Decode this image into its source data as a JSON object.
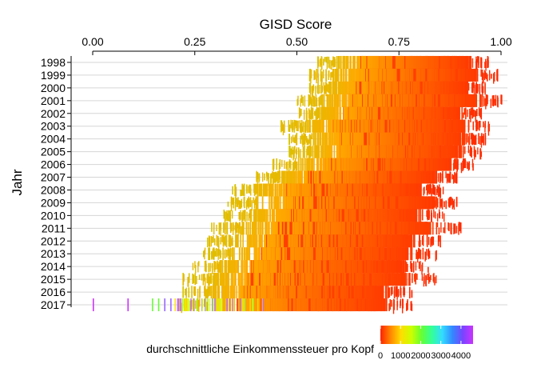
{
  "chart_data": {
    "type": "heatmap",
    "title": "GISD Score",
    "xlabel": "GISD Score",
    "ylabel": "Jahr",
    "x_axis_position": "top",
    "xlim": [
      0,
      1
    ],
    "x_ticks": [
      "0.00",
      "0.25",
      "0.50",
      "0.75",
      "1.00"
    ],
    "x_tick_values": [
      0,
      0.25,
      0.5,
      0.75,
      1.0
    ],
    "categories": [
      "1998",
      "1999",
      "2000",
      "2001",
      "2002",
      "2003",
      "2004",
      "2005",
      "2006",
      "2007",
      "2008",
      "2009",
      "2010",
      "2011",
      "2012",
      "2013",
      "2014",
      "2015",
      "2016",
      "2017"
    ],
    "rows": [
      {
        "year": "1998",
        "gisd_min": 0.55,
        "gisd_max": 0.97
      },
      {
        "year": "1999",
        "gisd_min": 0.53,
        "gisd_max": 0.99
      },
      {
        "year": "2000",
        "gisd_min": 0.53,
        "gisd_max": 0.96
      },
      {
        "year": "2001",
        "gisd_min": 0.5,
        "gisd_max": 1.0
      },
      {
        "year": "2002",
        "gisd_min": 0.5,
        "gisd_max": 0.95
      },
      {
        "year": "2003",
        "gisd_min": 0.46,
        "gisd_max": 0.97
      },
      {
        "year": "2004",
        "gisd_min": 0.48,
        "gisd_max": 0.96
      },
      {
        "year": "2005",
        "gisd_min": 0.48,
        "gisd_max": 0.95
      },
      {
        "year": "2006",
        "gisd_min": 0.44,
        "gisd_max": 0.93
      },
      {
        "year": "2007",
        "gisd_min": 0.4,
        "gisd_max": 0.89
      },
      {
        "year": "2008",
        "gisd_min": 0.34,
        "gisd_max": 0.86
      },
      {
        "year": "2009",
        "gisd_min": 0.33,
        "gisd_max": 0.89
      },
      {
        "year": "2010",
        "gisd_min": 0.32,
        "gisd_max": 0.86
      },
      {
        "year": "2011",
        "gisd_min": 0.29,
        "gisd_max": 0.9
      },
      {
        "year": "2012",
        "gisd_min": 0.28,
        "gisd_max": 0.85
      },
      {
        "year": "2013",
        "gisd_min": 0.27,
        "gisd_max": 0.84
      },
      {
        "year": "2014",
        "gisd_min": 0.24,
        "gisd_max": 0.82
      },
      {
        "year": "2015",
        "gisd_min": 0.22,
        "gisd_max": 0.84
      },
      {
        "year": "2016",
        "gisd_min": 0.22,
        "gisd_max": 0.78
      },
      {
        "year": "2017",
        "gisd_min": 0.21,
        "gisd_max": 0.78,
        "outliers": [
          0.0,
          0.085,
          0.145,
          0.16,
          0.175,
          0.19
        ]
      }
    ],
    "color_variable": "durchschnittliche Einkommenssteuer pro Kopf",
    "legend": {
      "title": "durchschnittliche Einkommenssteuer pro Kopf",
      "position": "bottom",
      "ticks": [
        "0",
        "1000",
        "2000",
        "3000",
        "4000"
      ],
      "tick_values": [
        0,
        1000,
        2000,
        3000,
        4000
      ],
      "range": [
        0,
        4600
      ],
      "colors": [
        "#ff2200",
        "#ff8800",
        "#ffdd00",
        "#ccff00",
        "#66ff33",
        "#33ff99",
        "#33ddff",
        "#3388ff",
        "#7744ff",
        "#cc33ff"
      ]
    },
    "grid": true
  }
}
